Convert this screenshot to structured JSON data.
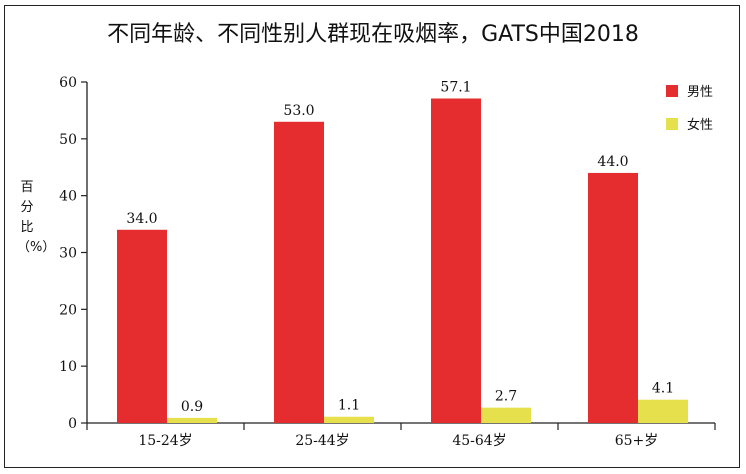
{
  "chart_data": {
    "type": "bar",
    "title": "不同年龄、不同性别人群现在吸烟率，GATS中国2018",
    "ylabel": "百分比（%）",
    "xlabel": "",
    "categories": [
      "15-24岁",
      "25-44岁",
      "45-64岁",
      "65+岁"
    ],
    "series": [
      {
        "name": "男性",
        "values": [
          34.0,
          53.0,
          57.1,
          44.0
        ],
        "color": "#e52d2f"
      },
      {
        "name": "女性",
        "values": [
          0.9,
          1.1,
          2.7,
          4.1
        ],
        "color": "#e6e04c"
      }
    ],
    "ylim": [
      0,
      60
    ],
    "yticks": [
      0,
      10,
      20,
      30,
      40,
      50,
      60
    ],
    "grid": false,
    "legend": "top-right"
  }
}
